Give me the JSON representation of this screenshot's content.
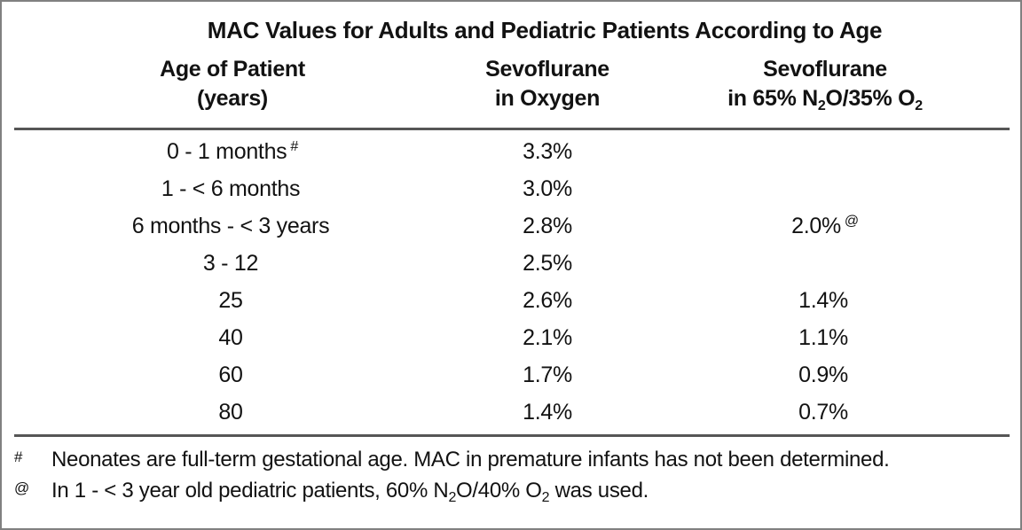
{
  "table": {
    "title": "MAC Values for Adults and Pediatric Patients According to Age",
    "header": {
      "col1": {
        "line1": "Age of Patient",
        "line2": "(years)"
      },
      "col2": {
        "line1": "Sevoflurane",
        "line2": "in Oxygen"
      },
      "col3": {
        "line1": "Sevoflurane",
        "line2_segments": {
          "s0": "in 65% N",
          "s1": "2",
          "s2": "O/35% O",
          "s3": "2"
        }
      }
    },
    "rows": [
      {
        "age": "0 - 1 months",
        "age_marker": "#",
        "oxygen": "3.3%",
        "n2o": "",
        "n2o_marker": ""
      },
      {
        "age": "1 - < 6 months",
        "age_marker": "",
        "oxygen": "3.0%",
        "n2o": "",
        "n2o_marker": ""
      },
      {
        "age": "6 months - < 3 years",
        "age_marker": "",
        "oxygen": "2.8%",
        "n2o": "2.0%",
        "n2o_marker": "@"
      },
      {
        "age": "3 - 12",
        "age_marker": "",
        "oxygen": "2.5%",
        "n2o": "",
        "n2o_marker": ""
      },
      {
        "age": "25",
        "age_marker": "",
        "oxygen": "2.6%",
        "n2o": "1.4%",
        "n2o_marker": ""
      },
      {
        "age": "40",
        "age_marker": "",
        "oxygen": "2.1%",
        "n2o": "1.1%",
        "n2o_marker": ""
      },
      {
        "age": "60",
        "age_marker": "",
        "oxygen": "1.7%",
        "n2o": "0.9%",
        "n2o_marker": ""
      },
      {
        "age": "80",
        "age_marker": "",
        "oxygen": "1.4%",
        "n2o": "0.7%",
        "n2o_marker": ""
      }
    ],
    "footnotes": {
      "f1": {
        "marker": "#",
        "text": "Neonates are full-term gestational age. MAC in premature infants has not been determined."
      },
      "f2": {
        "marker": "@",
        "segments": {
          "s0": "In 1 - < 3 year old pediatric patients, 60% N",
          "s1": "2",
          "s2": "O/40% O",
          "s3": "2",
          "s4": " was used."
        }
      }
    },
    "colors": {
      "rule": "#565656",
      "border": "#808080",
      "text": "#121212"
    }
  }
}
